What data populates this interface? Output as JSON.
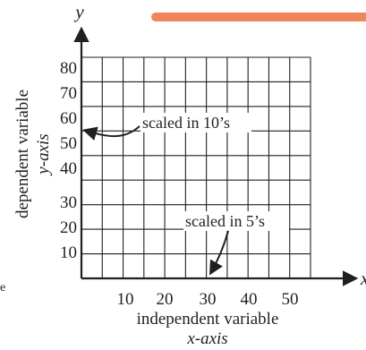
{
  "axes": {
    "y_letter": "y",
    "x_letter": "x",
    "y_ticks": [
      "80",
      "70",
      "60",
      "50",
      "40",
      "30",
      "20",
      "10"
    ],
    "x_ticks": [
      "10",
      "20",
      "30",
      "40",
      "50"
    ],
    "y_title_line1": "dependent variable",
    "y_title_line2": "y-axis",
    "x_title_line1": "independent variable",
    "x_title_line2": "x-axis"
  },
  "annotations": {
    "y_scale_note": "scaled in 10’s",
    "x_scale_note": "scaled in 5’s"
  },
  "partial_label": "e",
  "colors": {
    "ink": "#231f20",
    "highlight": "#f0845a"
  }
}
